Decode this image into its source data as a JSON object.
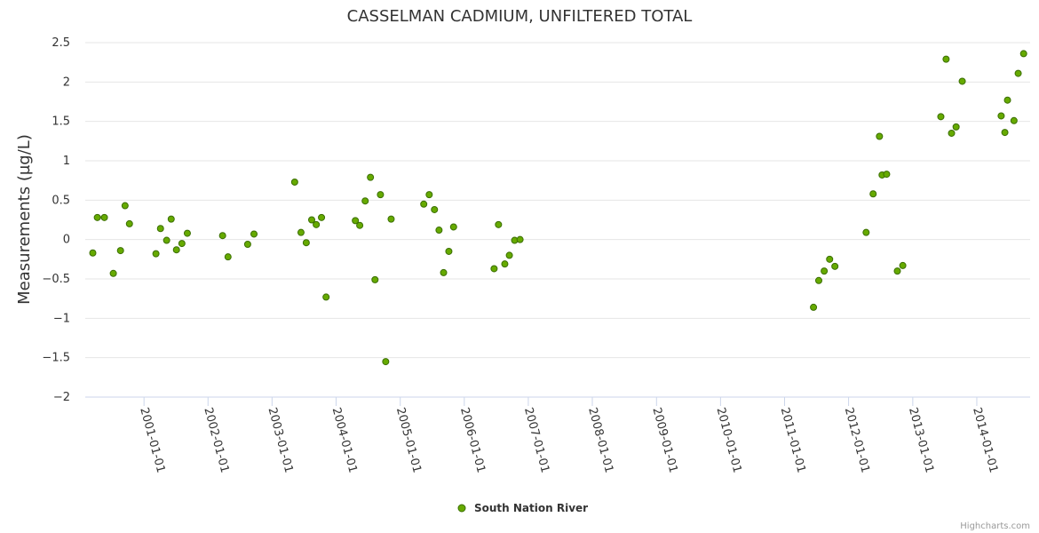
{
  "chart_data": {
    "type": "scatter",
    "title": "CASSELMAN CADMIUM, UNFILTERED TOTAL",
    "xlabel": "",
    "ylabel": "Measurements (µg/L)",
    "ylim": [
      -2,
      2.5
    ],
    "y_ticks": [
      "2.5",
      "2",
      "1.5",
      "1",
      "0.5",
      "0",
      "−0.5",
      "−1",
      "−1.5",
      "−2"
    ],
    "y_tick_values": [
      2.5,
      2,
      1.5,
      1,
      0.5,
      0,
      -0.5,
      -1,
      -1.5,
      -2
    ],
    "xlim": [
      "2000-02-01",
      "2014-11-01"
    ],
    "x_ticks": [
      "2001-01-01",
      "2002-01-01",
      "2003-01-01",
      "2004-01-01",
      "2005-01-01",
      "2006-01-01",
      "2007-01-01",
      "2008-01-01",
      "2009-01-01",
      "2010-01-01",
      "2011-01-01",
      "2012-01-01",
      "2013-01-01",
      "2014-01-01"
    ],
    "grid": true,
    "legend_position": "bottom-center",
    "series": [
      {
        "name": "South Nation River",
        "color": "#66aa00",
        "points": [
          {
            "x": "2000-03-15",
            "y": -0.17
          },
          {
            "x": "2000-04-10",
            "y": 0.28
          },
          {
            "x": "2000-05-20",
            "y": 0.28
          },
          {
            "x": "2000-07-10",
            "y": -0.43
          },
          {
            "x": "2000-08-20",
            "y": -0.14
          },
          {
            "x": "2000-09-15",
            "y": 0.43
          },
          {
            "x": "2000-10-10",
            "y": 0.2
          },
          {
            "x": "2001-03-10",
            "y": -0.18
          },
          {
            "x": "2001-04-05",
            "y": 0.14
          },
          {
            "x": "2001-05-10",
            "y": -0.01
          },
          {
            "x": "2001-06-05",
            "y": 0.26
          },
          {
            "x": "2001-07-05",
            "y": -0.13
          },
          {
            "x": "2001-08-05",
            "y": -0.05
          },
          {
            "x": "2001-09-05",
            "y": 0.08
          },
          {
            "x": "2002-03-25",
            "y": 0.05
          },
          {
            "x": "2002-04-25",
            "y": -0.22
          },
          {
            "x": "2002-08-15",
            "y": -0.06
          },
          {
            "x": "2002-09-20",
            "y": 0.07
          },
          {
            "x": "2003-05-10",
            "y": 0.73
          },
          {
            "x": "2003-06-15",
            "y": 0.09
          },
          {
            "x": "2003-07-15",
            "y": -0.04
          },
          {
            "x": "2003-08-15",
            "y": 0.25
          },
          {
            "x": "2003-09-10",
            "y": 0.19
          },
          {
            "x": "2003-10-10",
            "y": 0.28
          },
          {
            "x": "2003-11-05",
            "y": -0.73
          },
          {
            "x": "2004-04-20",
            "y": 0.24
          },
          {
            "x": "2004-05-15",
            "y": 0.18
          },
          {
            "x": "2004-06-15",
            "y": 0.49
          },
          {
            "x": "2004-07-15",
            "y": 0.79
          },
          {
            "x": "2004-08-10",
            "y": -0.51
          },
          {
            "x": "2004-09-10",
            "y": 0.57
          },
          {
            "x": "2004-10-10",
            "y": -1.55
          },
          {
            "x": "2004-11-10",
            "y": 0.26
          },
          {
            "x": "2005-05-15",
            "y": 0.45
          },
          {
            "x": "2005-06-15",
            "y": 0.57
          },
          {
            "x": "2005-07-15",
            "y": 0.38
          },
          {
            "x": "2005-08-10",
            "y": 0.12
          },
          {
            "x": "2005-09-05",
            "y": -0.42
          },
          {
            "x": "2005-10-05",
            "y": -0.15
          },
          {
            "x": "2005-11-01",
            "y": 0.16
          },
          {
            "x": "2006-06-20",
            "y": -0.37
          },
          {
            "x": "2006-07-15",
            "y": 0.19
          },
          {
            "x": "2006-08-20",
            "y": -0.31
          },
          {
            "x": "2006-09-15",
            "y": -0.2
          },
          {
            "x": "2006-10-15",
            "y": -0.01
          },
          {
            "x": "2006-11-15",
            "y": 0.0
          },
          {
            "x": "2011-06-15",
            "y": -0.86
          },
          {
            "x": "2011-07-15",
            "y": -0.52
          },
          {
            "x": "2011-08-15",
            "y": -0.4
          },
          {
            "x": "2011-09-15",
            "y": -0.25
          },
          {
            "x": "2011-10-15",
            "y": -0.34
          },
          {
            "x": "2012-04-10",
            "y": 0.09
          },
          {
            "x": "2012-05-20",
            "y": 0.58
          },
          {
            "x": "2012-06-25",
            "y": 1.31
          },
          {
            "x": "2012-07-10",
            "y": 0.82
          },
          {
            "x": "2012-08-05",
            "y": 0.83
          },
          {
            "x": "2012-10-05",
            "y": -0.4
          },
          {
            "x": "2012-11-05",
            "y": -0.33
          },
          {
            "x": "2013-06-10",
            "y": 1.56
          },
          {
            "x": "2013-07-10",
            "y": 2.29
          },
          {
            "x": "2013-08-10",
            "y": 1.35
          },
          {
            "x": "2013-09-05",
            "y": 1.43
          },
          {
            "x": "2013-10-10",
            "y": 2.01
          },
          {
            "x": "2014-05-20",
            "y": 1.57
          },
          {
            "x": "2014-06-10",
            "y": 1.36
          },
          {
            "x": "2014-06-25",
            "y": 1.77
          },
          {
            "x": "2014-08-01",
            "y": 1.51
          },
          {
            "x": "2014-08-25",
            "y": 2.11
          },
          {
            "x": "2014-09-25",
            "y": 2.36
          }
        ]
      }
    ],
    "credits": "Highcharts.com"
  }
}
